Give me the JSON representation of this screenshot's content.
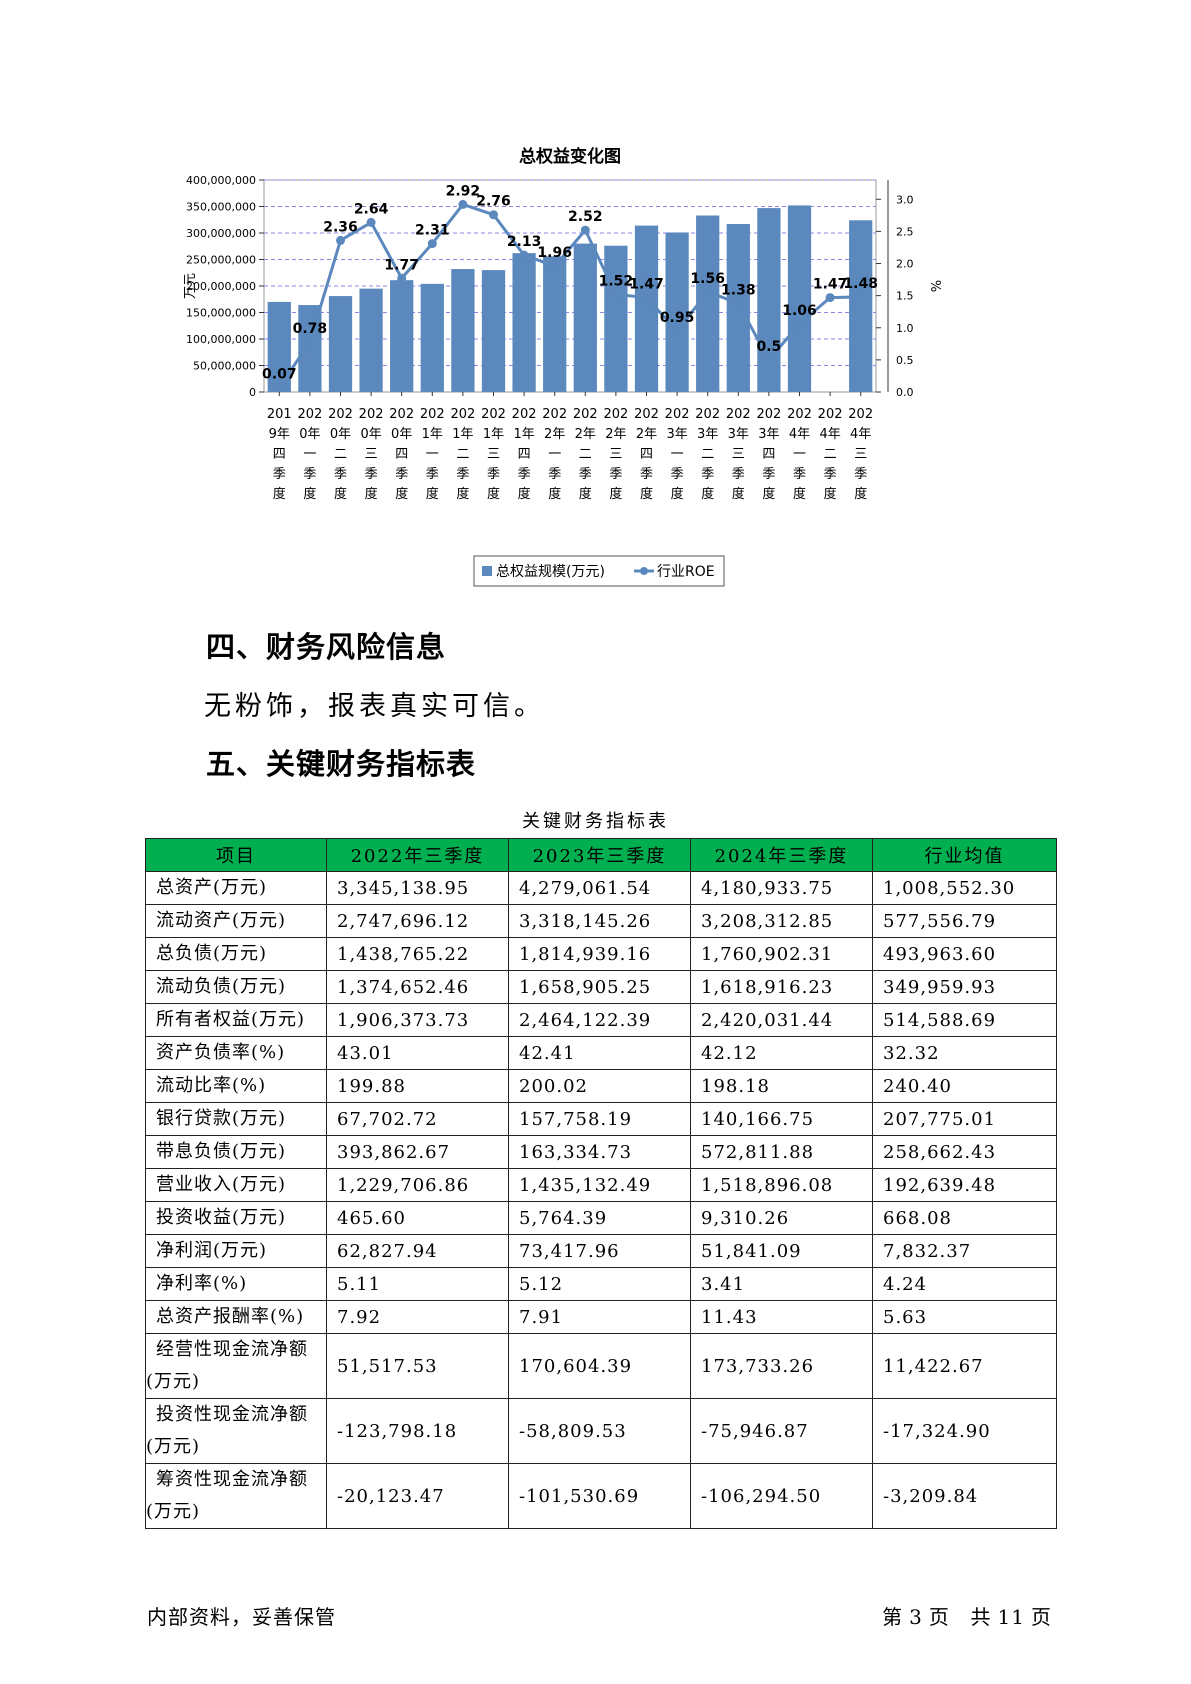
{
  "chart": {
    "title": "总权益变化图",
    "left_axis_label": "万元",
    "right_axis_label": "%",
    "left_ticks": [
      "0",
      "50,000,000",
      "100,000,000",
      "150,000,000",
      "200,000,000",
      "250,000,000",
      "300,000,000",
      "350,000,000",
      "400,000,000"
    ],
    "right_ticks": [
      "0.0",
      "0.5",
      "1.0",
      "1.5",
      "2.0",
      "2.5",
      "3.0"
    ],
    "legend": {
      "bar": "总权益规模(万元)",
      "line": "行业ROE"
    },
    "colors": {
      "bar": "#5b88bd",
      "line": "#5b88bd",
      "grid": "#8a8ae6"
    }
  },
  "chart_data": {
    "type": "bar",
    "title": "总权益变化图",
    "ylabel": "万元",
    "y2label": "%",
    "ylim": [
      0,
      400000000
    ],
    "y2lim": [
      0,
      3.3
    ],
    "grid": true,
    "legend_position": "bottom",
    "categories": [
      "2019年四季度",
      "2020年一季度",
      "2020年二季度",
      "2020年三季度",
      "2020年四季度",
      "2021年一季度",
      "2021年二季度",
      "2021年三季度",
      "2021年四季度",
      "2022年一季度",
      "2022年二季度",
      "2022年三季度",
      "2022年四季度",
      "2023年一季度",
      "2023年二季度",
      "2023年三季度",
      "2023年四季度",
      "2024年一季度",
      "2024年二季度",
      "2024年三季度"
    ],
    "series": [
      {
        "name": "总权益规模(万元)",
        "type": "bar",
        "axis": "left",
        "values": [
          170000000,
          164000000,
          181000000,
          195000000,
          211000000,
          204000000,
          232000000,
          230000000,
          262000000,
          256000000,
          280000000,
          276000000,
          314000000,
          301000000,
          333000000,
          317000000,
          347000000,
          352000000,
          null,
          324000000
        ]
      },
      {
        "name": "行业ROE",
        "type": "line",
        "axis": "right",
        "values": [
          0.07,
          0.78,
          2.36,
          2.64,
          1.77,
          2.31,
          2.92,
          2.76,
          2.13,
          1.96,
          2.52,
          1.52,
          1.47,
          0.95,
          1.56,
          1.38,
          0.5,
          1.06,
          1.47,
          1.48
        ]
      }
    ]
  },
  "section_risk": {
    "heading": "四、财务风险信息",
    "text": "无粉饰，报表真实可信。"
  },
  "section_indicators": {
    "heading": "五、关键财务指标表"
  },
  "table": {
    "caption": "关键财务指标表",
    "headers": [
      "项目",
      "2022年三季度",
      "2023年三季度",
      "2024年三季度",
      "行业均值"
    ],
    "rows": [
      [
        "总资产(万元)",
        "3,345,138.95",
        "4,279,061.54",
        "4,180,933.75",
        "1,008,552.30"
      ],
      [
        "流动资产(万元)",
        "2,747,696.12",
        "3,318,145.26",
        "3,208,312.85",
        "577,556.79"
      ],
      [
        "总负债(万元)",
        "1,438,765.22",
        "1,814,939.16",
        "1,760,902.31",
        "493,963.60"
      ],
      [
        "流动负债(万元)",
        "1,374,652.46",
        "1,658,905.25",
        "1,618,916.23",
        "349,959.93"
      ],
      [
        "所有者权益(万元)",
        "1,906,373.73",
        "2,464,122.39",
        "2,420,031.44",
        "514,588.69"
      ],
      [
        "资产负债率(%)",
        "43.01",
        "42.41",
        "42.12",
        "32.32"
      ],
      [
        "流动比率(%)",
        "199.88",
        "200.02",
        "198.18",
        "240.40"
      ],
      [
        "银行贷款(万元)",
        "67,702.72",
        "157,758.19",
        "140,166.75",
        "207,775.01"
      ],
      [
        "带息负债(万元)",
        "393,862.67",
        "163,334.73",
        "572,811.88",
        "258,662.43"
      ],
      [
        "营业收入(万元)",
        "1,229,706.86",
        "1,435,132.49",
        "1,518,896.08",
        "192,639.48"
      ],
      [
        "投资收益(万元)",
        "465.60",
        "5,764.39",
        "9,310.26",
        "668.08"
      ],
      [
        "净利润(万元)",
        "62,827.94",
        "73,417.96",
        "51,841.09",
        "7,832.37"
      ],
      [
        "净利率(%)",
        "5.11",
        "5.12",
        "3.41",
        "4.24"
      ],
      [
        "总资产报酬率(%)",
        "7.92",
        "7.91",
        "11.43",
        "5.63"
      ],
      [
        "经营性现金流净额(万元)",
        "51,517.53",
        "170,604.39",
        "173,733.26",
        "11,422.67"
      ],
      [
        "投资性现金流净额(万元)",
        "-123,798.18",
        "-58,809.53",
        "-75,946.87",
        "-17,324.90"
      ],
      [
        "筹资性现金流净额(万元)",
        "-20,123.47",
        "-101,530.69",
        "-106,294.50",
        "-3,209.84"
      ]
    ]
  },
  "footer": {
    "left": "内部资料，妥善保管",
    "page_prefix": "第",
    "page_num": "3",
    "page_unit": "页",
    "total_prefix": "共",
    "total_num": "11",
    "total_unit": "页"
  }
}
